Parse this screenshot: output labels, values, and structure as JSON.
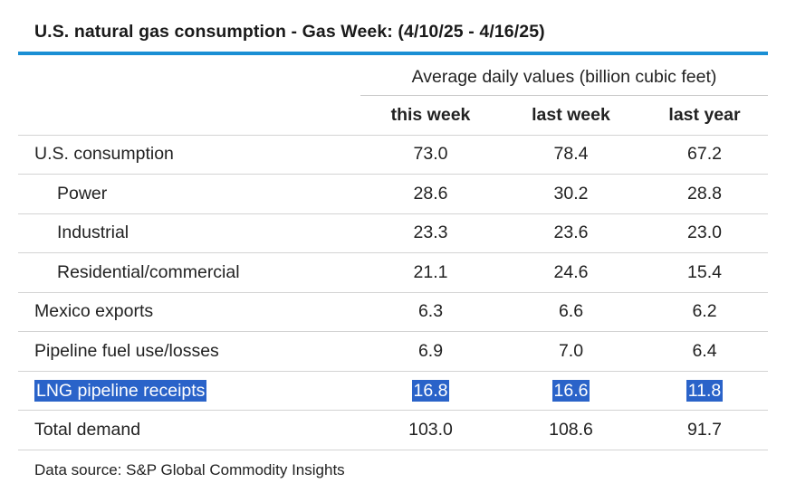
{
  "title": "U.S. natural gas consumption - Gas Week: (4/10/25 - 4/16/25)",
  "colors": {
    "accent_rule": "#1a8fd4",
    "highlight": "#2a63c9",
    "highlight_text": "#ffffff"
  },
  "table": {
    "group_header": "Average daily values (billion cubic feet)",
    "columns": [
      "this week",
      "last week",
      "last year"
    ],
    "rows": [
      {
        "label": "U.S. consumption",
        "indent": false,
        "highlighted": false,
        "values": [
          "73.0",
          "78.4",
          "67.2"
        ]
      },
      {
        "label": "Power",
        "indent": true,
        "highlighted": false,
        "values": [
          "28.6",
          "30.2",
          "28.8"
        ]
      },
      {
        "label": "Industrial",
        "indent": true,
        "highlighted": false,
        "values": [
          "23.3",
          "23.6",
          "23.0"
        ]
      },
      {
        "label": "Residential/commercial",
        "indent": true,
        "highlighted": false,
        "values": [
          "21.1",
          "24.6",
          "15.4"
        ]
      },
      {
        "label": "Mexico exports",
        "indent": false,
        "highlighted": false,
        "values": [
          "6.3",
          "6.6",
          "6.2"
        ]
      },
      {
        "label": "Pipeline fuel use/losses",
        "indent": false,
        "highlighted": false,
        "values": [
          "6.9",
          "7.0",
          "6.4"
        ]
      },
      {
        "label": "LNG pipeline receipts",
        "indent": false,
        "highlighted": true,
        "values": [
          "16.8",
          "16.6",
          "11.8"
        ]
      },
      {
        "label": "Total demand",
        "indent": false,
        "highlighted": false,
        "values": [
          "103.0",
          "108.6",
          "91.7"
        ]
      }
    ]
  },
  "source": "Data source: S&P Global Commodity Insights"
}
